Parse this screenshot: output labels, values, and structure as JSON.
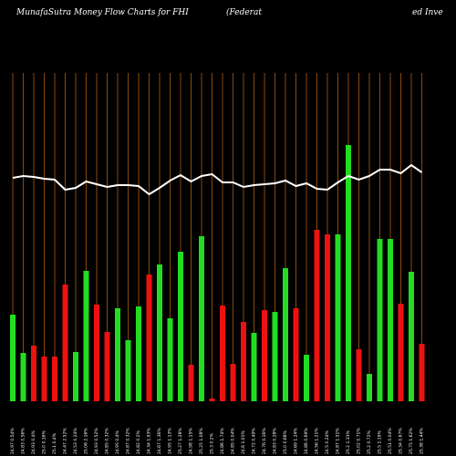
{
  "chart_data": {
    "type": "bar",
    "title": "MunafaSutra  Money Flow  Charts for FHI",
    "subtitle_left": "(Federat",
    "subtitle_right": "ed Inve",
    "categories": [
      "24.97 0.54%",
      "24.83 0.56%",
      "24.93 0.4%",
      "25.0 0.16%",
      "25.1 0.4%",
      "24.47 2.52%",
      "24.53 0.24%",
      "25.06 2.16%",
      "24.93 0.52%",
      "24.85 0.32%",
      "24.95 0.4%",
      "24.87 0.32%",
      "24.82 0.2%",
      "24.34 1.93%",
      "24.67 1.36%",
      "24.95 1.13%",
      "25.27 1.28%",
      "24.98 1.15%",
      "25.25 1.08%",
      "25.3 0.2%",
      "24.86 1.74%",
      "24.85 0.04%",
      "24.6 1.01%",
      "24.72 0.49%",
      "24.76 0.16%",
      "24.83 0.28%",
      "25.0 0.68%",
      "24.69 1.24%",
      "24.86 0.69%",
      "24.56 1.21%",
      "24.5 0.24%",
      "24.87 1.51%",
      "25.2 1.33%",
      "25.02 0.71%",
      "25.2 0.72%",
      "25.5 1.19%",
      "25.51 0.04%",
      "25.34 0.67%",
      "25.75 1.62%",
      "25.38 1.44%"
    ],
    "values": [
      95,
      53,
      61,
      49,
      49,
      128,
      54,
      143,
      106,
      76,
      102,
      67,
      104,
      139,
      150,
      91,
      164,
      40,
      181,
      3,
      105,
      41,
      87,
      75,
      100,
      98,
      146,
      102,
      51,
      188,
      183,
      183,
      281,
      57,
      30,
      178,
      178,
      107,
      142,
      63
    ],
    "bar_colors": [
      "#22dd22",
      "#22dd22",
      "#ee1111",
      "#ee1111",
      "#ee1111",
      "#ee1111",
      "#22dd22",
      "#22dd22",
      "#ee1111",
      "#ee1111",
      "#22dd22",
      "#22dd22",
      "#22dd22",
      "#ee1111",
      "#22dd22",
      "#22dd22",
      "#22dd22",
      "#ee1111",
      "#22dd22",
      "#ee1111",
      "#ee1111",
      "#ee1111",
      "#ee1111",
      "#22dd22",
      "#ee1111",
      "#22dd22",
      "#22dd22",
      "#ee1111",
      "#22dd22",
      "#ee1111",
      "#ee1111",
      "#22dd22",
      "#22dd22",
      "#ee1111",
      "#22dd22",
      "#22dd22",
      "#22dd22",
      "#ee1111",
      "#22dd22",
      "#ee1111"
    ],
    "line_values": [
      245,
      247,
      246,
      244,
      243,
      232,
      234,
      241,
      238,
      235,
      237,
      237,
      236,
      227,
      234,
      242,
      248,
      241,
      247,
      249,
      240,
      240,
      235,
      237,
      238,
      239,
      242,
      236,
      239,
      233,
      232,
      240,
      247,
      243,
      247,
      254,
      254,
      250,
      259,
      251
    ],
    "line_color": "#ffffff",
    "ylim": [
      0,
      360
    ]
  }
}
